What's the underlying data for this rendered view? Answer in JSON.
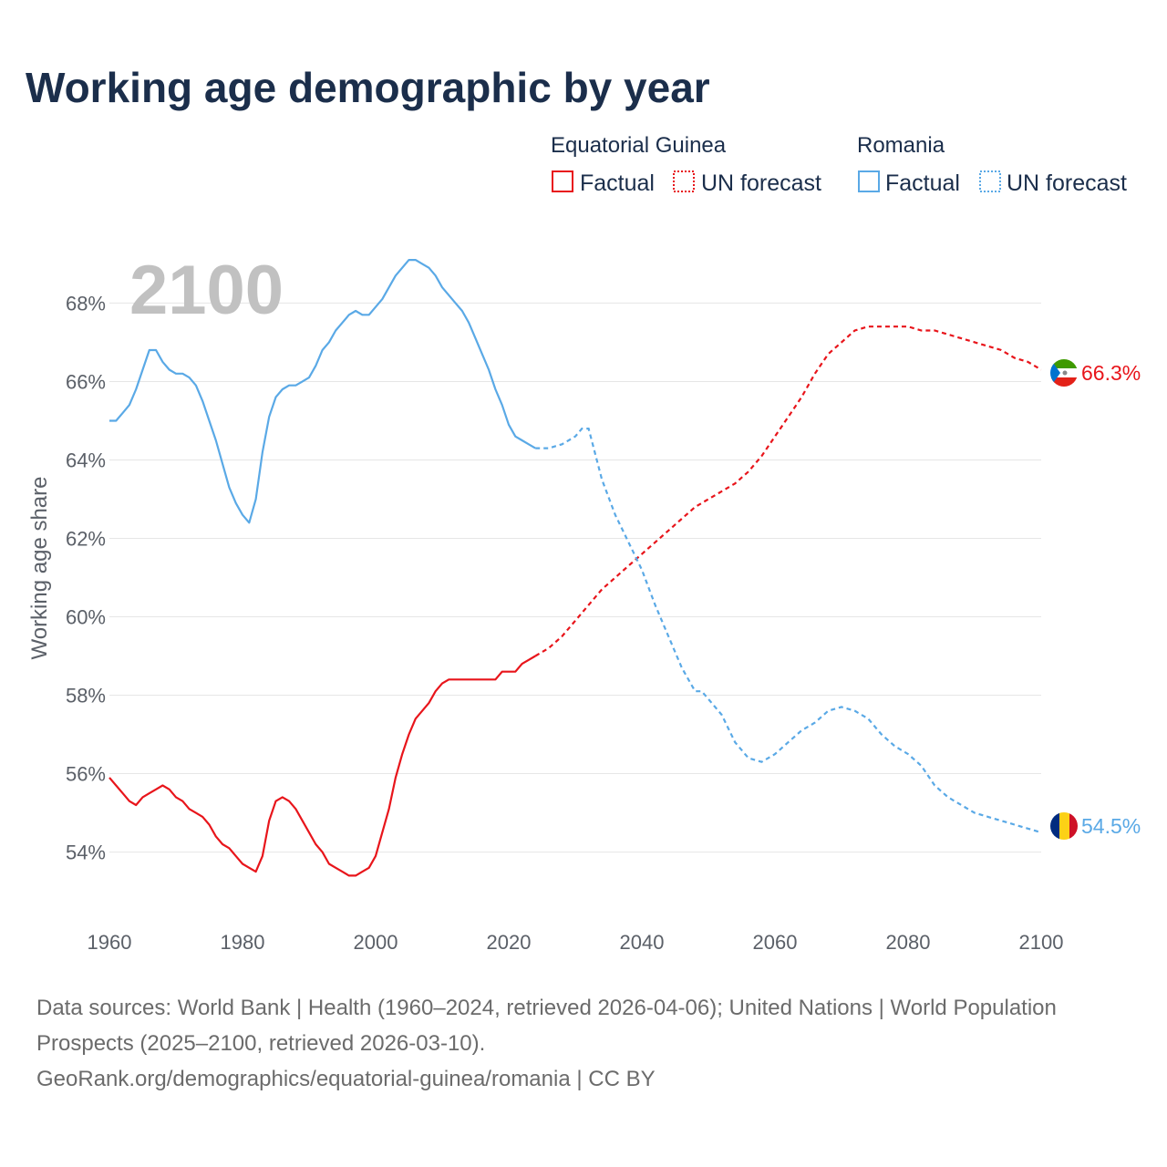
{
  "title": "Working age demographic by year",
  "current_year": "2100",
  "legend": {
    "groups": [
      {
        "name": "Equatorial Guinea",
        "color": "#e8151b",
        "factual_label": "Factual",
        "forecast_label": "UN forecast"
      },
      {
        "name": "Romania",
        "color": "#5aa9e6",
        "factual_label": "Factual",
        "forecast_label": "UN forecast"
      }
    ]
  },
  "footer": {
    "sources": "Data sources: World Bank | Health (1960–2024, retrieved 2026-04-06); United Nations | World Population Prospects (2025–2100, retrieved 2026-03-10).",
    "link": "GeoRank.org/demographics/equatorial-guinea/romania | CC BY"
  },
  "chart_data": {
    "type": "line",
    "title": "Working age demographic by year",
    "xlabel": "",
    "ylabel": "Working age share",
    "xlim": [
      1960,
      2100
    ],
    "ylim": [
      52.2,
      69.8
    ],
    "x_ticks": [
      1960,
      1980,
      2000,
      2020,
      2040,
      2060,
      2080,
      2100
    ],
    "y_ticks": [
      54,
      56,
      58,
      60,
      62,
      64,
      66,
      68
    ],
    "y_tick_labels": [
      "54%",
      "56%",
      "58%",
      "60%",
      "62%",
      "64%",
      "66%",
      "68%"
    ],
    "grid": true,
    "legend_position": "top-right",
    "series": [
      {
        "name": "Equatorial Guinea",
        "color": "#e8151b",
        "end_label": "66.3%",
        "factual": [
          [
            1960,
            55.9
          ],
          [
            1961,
            55.7
          ],
          [
            1962,
            55.5
          ],
          [
            1963,
            55.3
          ],
          [
            1964,
            55.2
          ],
          [
            1965,
            55.4
          ],
          [
            1966,
            55.5
          ],
          [
            1967,
            55.6
          ],
          [
            1968,
            55.7
          ],
          [
            1969,
            55.6
          ],
          [
            1970,
            55.4
          ],
          [
            1971,
            55.3
          ],
          [
            1972,
            55.1
          ],
          [
            1973,
            55.0
          ],
          [
            1974,
            54.9
          ],
          [
            1975,
            54.7
          ],
          [
            1976,
            54.4
          ],
          [
            1977,
            54.2
          ],
          [
            1978,
            54.1
          ],
          [
            1979,
            53.9
          ],
          [
            1980,
            53.7
          ],
          [
            1981,
            53.6
          ],
          [
            1982,
            53.5
          ],
          [
            1983,
            53.9
          ],
          [
            1984,
            54.8
          ],
          [
            1985,
            55.3
          ],
          [
            1986,
            55.4
          ],
          [
            1987,
            55.3
          ],
          [
            1988,
            55.1
          ],
          [
            1989,
            54.8
          ],
          [
            1990,
            54.5
          ],
          [
            1991,
            54.2
          ],
          [
            1992,
            54.0
          ],
          [
            1993,
            53.7
          ],
          [
            1994,
            53.6
          ],
          [
            1995,
            53.5
          ],
          [
            1996,
            53.4
          ],
          [
            1997,
            53.4
          ],
          [
            1998,
            53.5
          ],
          [
            1999,
            53.6
          ],
          [
            2000,
            53.9
          ],
          [
            2001,
            54.5
          ],
          [
            2002,
            55.1
          ],
          [
            2003,
            55.9
          ],
          [
            2004,
            56.5
          ],
          [
            2005,
            57.0
          ],
          [
            2006,
            57.4
          ],
          [
            2007,
            57.6
          ],
          [
            2008,
            57.8
          ],
          [
            2009,
            58.1
          ],
          [
            2010,
            58.3
          ],
          [
            2011,
            58.4
          ],
          [
            2012,
            58.4
          ],
          [
            2013,
            58.4
          ],
          [
            2014,
            58.4
          ],
          [
            2015,
            58.4
          ],
          [
            2016,
            58.4
          ],
          [
            2017,
            58.4
          ],
          [
            2018,
            58.4
          ],
          [
            2019,
            58.6
          ],
          [
            2020,
            58.6
          ],
          [
            2021,
            58.6
          ],
          [
            2022,
            58.8
          ],
          [
            2023,
            58.9
          ],
          [
            2024,
            59.0
          ]
        ],
        "forecast": [
          [
            2024,
            59.0
          ],
          [
            2026,
            59.2
          ],
          [
            2028,
            59.5
          ],
          [
            2030,
            59.9
          ],
          [
            2032,
            60.3
          ],
          [
            2034,
            60.7
          ],
          [
            2036,
            61.0
          ],
          [
            2038,
            61.3
          ],
          [
            2040,
            61.6
          ],
          [
            2042,
            61.9
          ],
          [
            2044,
            62.2
          ],
          [
            2046,
            62.5
          ],
          [
            2048,
            62.8
          ],
          [
            2050,
            63.0
          ],
          [
            2052,
            63.2
          ],
          [
            2054,
            63.4
          ],
          [
            2056,
            63.7
          ],
          [
            2058,
            64.1
          ],
          [
            2060,
            64.6
          ],
          [
            2062,
            65.1
          ],
          [
            2064,
            65.6
          ],
          [
            2066,
            66.2
          ],
          [
            2068,
            66.7
          ],
          [
            2070,
            67.0
          ],
          [
            2072,
            67.3
          ],
          [
            2074,
            67.4
          ],
          [
            2076,
            67.4
          ],
          [
            2078,
            67.4
          ],
          [
            2080,
            67.4
          ],
          [
            2082,
            67.3
          ],
          [
            2084,
            67.3
          ],
          [
            2086,
            67.2
          ],
          [
            2088,
            67.1
          ],
          [
            2090,
            67.0
          ],
          [
            2092,
            66.9
          ],
          [
            2094,
            66.8
          ],
          [
            2096,
            66.6
          ],
          [
            2098,
            66.5
          ],
          [
            2100,
            66.3
          ]
        ]
      },
      {
        "name": "Romania",
        "color": "#5aa9e6",
        "end_label": "54.5%",
        "factual": [
          [
            1960,
            65.0
          ],
          [
            1961,
            65.0
          ],
          [
            1962,
            65.2
          ],
          [
            1963,
            65.4
          ],
          [
            1964,
            65.8
          ],
          [
            1965,
            66.3
          ],
          [
            1966,
            66.8
          ],
          [
            1967,
            66.8
          ],
          [
            1968,
            66.5
          ],
          [
            1969,
            66.3
          ],
          [
            1970,
            66.2
          ],
          [
            1971,
            66.2
          ],
          [
            1972,
            66.1
          ],
          [
            1973,
            65.9
          ],
          [
            1974,
            65.5
          ],
          [
            1975,
            65.0
          ],
          [
            1976,
            64.5
          ],
          [
            1977,
            63.9
          ],
          [
            1978,
            63.3
          ],
          [
            1979,
            62.9
          ],
          [
            1980,
            62.6
          ],
          [
            1981,
            62.4
          ],
          [
            1982,
            63.0
          ],
          [
            1983,
            64.2
          ],
          [
            1984,
            65.1
          ],
          [
            1985,
            65.6
          ],
          [
            1986,
            65.8
          ],
          [
            1987,
            65.9
          ],
          [
            1988,
            65.9
          ],
          [
            1989,
            66.0
          ],
          [
            1990,
            66.1
          ],
          [
            1991,
            66.4
          ],
          [
            1992,
            66.8
          ],
          [
            1993,
            67.0
          ],
          [
            1994,
            67.3
          ],
          [
            1995,
            67.5
          ],
          [
            1996,
            67.7
          ],
          [
            1997,
            67.8
          ],
          [
            1998,
            67.7
          ],
          [
            1999,
            67.7
          ],
          [
            2000,
            67.9
          ],
          [
            2001,
            68.1
          ],
          [
            2002,
            68.4
          ],
          [
            2003,
            68.7
          ],
          [
            2004,
            68.9
          ],
          [
            2005,
            69.1
          ],
          [
            2006,
            69.1
          ],
          [
            2007,
            69.0
          ],
          [
            2008,
            68.9
          ],
          [
            2009,
            68.7
          ],
          [
            2010,
            68.4
          ],
          [
            2011,
            68.2
          ],
          [
            2012,
            68.0
          ],
          [
            2013,
            67.8
          ],
          [
            2014,
            67.5
          ],
          [
            2015,
            67.1
          ],
          [
            2016,
            66.7
          ],
          [
            2017,
            66.3
          ],
          [
            2018,
            65.8
          ],
          [
            2019,
            65.4
          ],
          [
            2020,
            64.9
          ],
          [
            2021,
            64.6
          ],
          [
            2022,
            64.5
          ],
          [
            2023,
            64.4
          ],
          [
            2024,
            64.3
          ]
        ],
        "forecast": [
          [
            2024,
            64.3
          ],
          [
            2026,
            64.3
          ],
          [
            2028,
            64.4
          ],
          [
            2030,
            64.6
          ],
          [
            2031,
            64.8
          ],
          [
            2032,
            64.8
          ],
          [
            2034,
            63.5
          ],
          [
            2036,
            62.6
          ],
          [
            2038,
            61.9
          ],
          [
            2040,
            61.2
          ],
          [
            2042,
            60.3
          ],
          [
            2044,
            59.5
          ],
          [
            2046,
            58.7
          ],
          [
            2048,
            58.1
          ],
          [
            2049,
            58.1
          ],
          [
            2050,
            57.9
          ],
          [
            2052,
            57.5
          ],
          [
            2054,
            56.8
          ],
          [
            2056,
            56.4
          ],
          [
            2058,
            56.3
          ],
          [
            2060,
            56.5
          ],
          [
            2062,
            56.8
          ],
          [
            2064,
            57.1
          ],
          [
            2066,
            57.3
          ],
          [
            2068,
            57.6
          ],
          [
            2070,
            57.7
          ],
          [
            2072,
            57.6
          ],
          [
            2074,
            57.4
          ],
          [
            2076,
            57.0
          ],
          [
            2078,
            56.7
          ],
          [
            2080,
            56.5
          ],
          [
            2082,
            56.2
          ],
          [
            2084,
            55.7
          ],
          [
            2086,
            55.4
          ],
          [
            2088,
            55.2
          ],
          [
            2090,
            55.0
          ],
          [
            2092,
            54.9
          ],
          [
            2094,
            54.8
          ],
          [
            2096,
            54.7
          ],
          [
            2098,
            54.6
          ],
          [
            2100,
            54.5
          ]
        ]
      }
    ]
  }
}
